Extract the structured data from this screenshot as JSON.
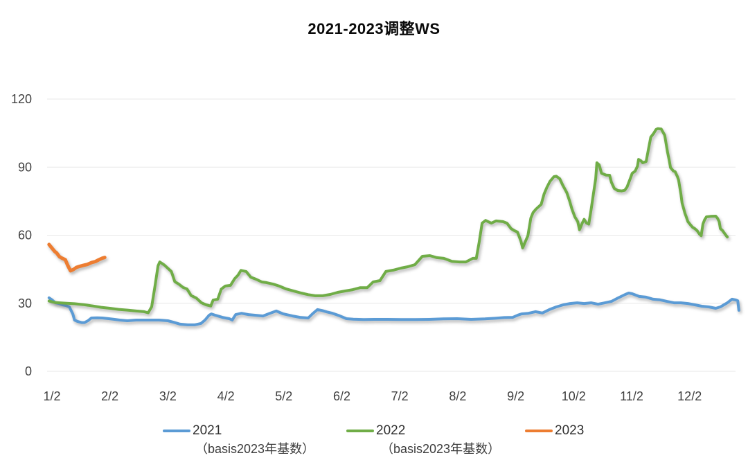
{
  "title": "2021-2023调整WS",
  "legend": {
    "items": [
      {
        "label": "2021",
        "color": "#5B9BD5"
      },
      {
        "label": "2022",
        "color": "#70AD47"
      },
      {
        "label": "2023",
        "color": "#ED7D31"
      }
    ]
  },
  "captions": [
    "（basis2023年基数）",
    "（basis2023年基数）"
  ],
  "chart_data": {
    "type": "line",
    "title": "2021-2023调整WS",
    "xlabel": "",
    "ylabel": "",
    "x_unit_note": "x is month index: 1.0 = 1/2 (Jan 2), 2.0 = 2/2, ... fractional = day within month",
    "x_axis": {
      "tick_labels": [
        "1/2",
        "2/2",
        "3/2",
        "4/2",
        "5/2",
        "6/2",
        "7/2",
        "8/2",
        "9/2",
        "10/2",
        "11/2",
        "12/2"
      ]
    },
    "y_axis": {
      "ticks": [
        0,
        30,
        60,
        90,
        120
      ],
      "range": [
        0,
        120
      ]
    },
    "grid": "horizontal",
    "legend_position": "bottom",
    "series": [
      {
        "name": "2021",
        "color": "#5B9BD5",
        "stroke_width": 4,
        "x": [
          0.95,
          1.0,
          1.06,
          1.12,
          1.18,
          1.24,
          1.3,
          1.36,
          1.39,
          1.44,
          1.51,
          1.56,
          1.62,
          1.68,
          1.78,
          1.87,
          1.98,
          2.08,
          2.17,
          2.3,
          2.45,
          2.6,
          2.72,
          2.85,
          3.0,
          3.09,
          3.21,
          3.34,
          3.46,
          3.57,
          3.64,
          3.71,
          3.75,
          3.82,
          3.94,
          4.06,
          4.11,
          4.17,
          4.27,
          4.39,
          4.52,
          4.64,
          4.76,
          4.87,
          4.99,
          5.15,
          5.28,
          5.42,
          5.5,
          5.58,
          5.66,
          5.74,
          5.84,
          5.96,
          6.08,
          6.2,
          6.38,
          6.56,
          6.79,
          7.03,
          7.27,
          7.51,
          7.75,
          7.99,
          8.23,
          8.47,
          8.65,
          8.8,
          8.95,
          9.04,
          9.1,
          9.22,
          9.34,
          9.46,
          9.58,
          9.7,
          9.82,
          9.94,
          10.06,
          10.18,
          10.3,
          10.42,
          10.54,
          10.65,
          10.77,
          10.89,
          10.95,
          11.01,
          11.13,
          11.25,
          11.37,
          11.49,
          11.61,
          11.73,
          11.85,
          11.97,
          12.09,
          12.21,
          12.33,
          12.45,
          12.53,
          12.65,
          12.73,
          12.79,
          12.83,
          12.85
        ],
        "y": [
          32.4,
          31.5,
          30.2,
          29.9,
          29.3,
          29.0,
          28.4,
          25.3,
          22.6,
          22.0,
          21.5,
          21.5,
          22.3,
          23.5,
          23.6,
          23.5,
          23.2,
          22.9,
          22.6,
          22.3,
          22.6,
          22.6,
          22.6,
          22.6,
          22.3,
          21.7,
          20.8,
          20.5,
          20.5,
          21.1,
          22.6,
          24.7,
          25.3,
          24.7,
          23.8,
          23.2,
          22.6,
          25.0,
          25.6,
          25.0,
          24.7,
          24.4,
          25.6,
          26.6,
          25.3,
          24.4,
          23.8,
          23.5,
          25.5,
          27.2,
          26.8,
          26.2,
          25.6,
          24.5,
          23.2,
          23.0,
          22.8,
          22.9,
          22.9,
          22.8,
          22.8,
          22.9,
          23.1,
          23.2,
          22.9,
          23.1,
          23.4,
          23.7,
          23.8,
          24.8,
          25.3,
          25.6,
          26.3,
          25.7,
          27.2,
          28.4,
          29.3,
          29.9,
          30.2,
          29.9,
          30.2,
          29.6,
          30.2,
          30.8,
          32.4,
          33.9,
          34.5,
          34.2,
          33.0,
          32.7,
          31.8,
          31.5,
          30.8,
          30.2,
          30.2,
          29.9,
          29.3,
          28.7,
          28.4,
          27.8,
          28.4,
          30.2,
          31.8,
          31.5,
          31.1,
          26.9
        ]
      },
      {
        "name": "2022",
        "color": "#70AD47",
        "stroke_width": 4,
        "x": [
          0.95,
          1.06,
          1.25,
          1.39,
          1.54,
          1.71,
          1.85,
          2.0,
          2.15,
          2.3,
          2.45,
          2.59,
          2.66,
          2.72,
          2.78,
          2.83,
          2.86,
          2.94,
          3.01,
          3.06,
          3.12,
          3.19,
          3.26,
          3.33,
          3.4,
          3.49,
          3.58,
          3.66,
          3.74,
          3.78,
          3.86,
          3.92,
          3.99,
          4.08,
          4.15,
          4.21,
          4.26,
          4.35,
          4.43,
          4.52,
          4.62,
          4.7,
          4.82,
          4.92,
          5.04,
          5.17,
          5.3,
          5.42,
          5.54,
          5.67,
          5.8,
          5.93,
          6.05,
          6.19,
          6.32,
          6.44,
          6.54,
          6.66,
          6.76,
          6.89,
          7.02,
          7.14,
          7.26,
          7.39,
          7.52,
          7.64,
          7.76,
          7.9,
          8.03,
          8.14,
          8.26,
          8.32,
          8.37,
          8.42,
          8.48,
          8.58,
          8.66,
          8.78,
          8.85,
          8.92,
          8.98,
          9.03,
          9.09,
          9.12,
          9.21,
          9.26,
          9.3,
          9.35,
          9.44,
          9.49,
          9.54,
          9.59,
          9.66,
          9.7,
          9.76,
          9.81,
          9.88,
          9.93,
          9.97,
          10.02,
          10.07,
          10.1,
          10.15,
          10.18,
          10.22,
          10.26,
          10.3,
          10.34,
          10.38,
          10.4,
          10.44,
          10.48,
          10.56,
          10.62,
          10.65,
          10.7,
          10.76,
          10.83,
          10.88,
          10.92,
          10.98,
          11.01,
          11.06,
          11.1,
          11.12,
          11.16,
          11.19,
          11.25,
          11.33,
          11.38,
          11.42,
          11.45,
          11.51,
          11.57,
          11.6,
          11.62,
          11.65,
          11.67,
          11.72,
          11.75,
          11.79,
          11.81,
          11.85,
          11.87,
          11.9,
          11.92,
          11.94,
          11.97,
          12.02,
          12.05,
          12.09,
          12.13,
          12.17,
          12.2,
          12.23,
          12.26,
          12.29,
          12.36,
          12.45,
          12.48,
          12.51,
          12.53,
          12.57,
          12.61,
          12.65
        ],
        "y": [
          31.0,
          30.3,
          30.0,
          29.8,
          29.4,
          28.8,
          28.2,
          27.8,
          27.3,
          27.0,
          26.6,
          26.3,
          25.8,
          28.5,
          38.0,
          46.5,
          48.2,
          46.8,
          45.2,
          44.0,
          39.5,
          38.4,
          37.0,
          36.3,
          33.4,
          32.3,
          30.2,
          29.3,
          28.8,
          31.4,
          31.8,
          36.2,
          37.6,
          37.9,
          40.8,
          42.4,
          44.5,
          44.0,
          41.5,
          40.6,
          39.4,
          39.1,
          38.4,
          37.6,
          36.3,
          35.4,
          34.5,
          33.8,
          33.3,
          33.3,
          33.9,
          34.8,
          35.4,
          36.0,
          36.9,
          36.9,
          39.4,
          40.0,
          44.0,
          44.6,
          45.5,
          46.1,
          47.0,
          50.7,
          51.0,
          50.1,
          49.8,
          48.5,
          48.2,
          48.2,
          49.8,
          49.8,
          57.0,
          65.3,
          66.5,
          65.3,
          66.3,
          66.0,
          65.3,
          62.9,
          62.0,
          61.4,
          57.4,
          54.4,
          59.8,
          67.5,
          70.0,
          71.5,
          73.6,
          78.2,
          81.2,
          83.7,
          85.8,
          86.0,
          84.9,
          82.1,
          78.8,
          75.1,
          71.5,
          68.1,
          66.0,
          62.4,
          65.5,
          67.0,
          65.4,
          64.9,
          71.1,
          78.2,
          84.9,
          91.9,
          91.0,
          87.3,
          86.5,
          86.4,
          83.4,
          80.6,
          79.7,
          79.5,
          79.8,
          81.2,
          85.2,
          87.3,
          88.2,
          90.4,
          93.4,
          92.8,
          91.9,
          92.5,
          103.2,
          104.9,
          106.6,
          107.0,
          106.8,
          104.1,
          99.5,
          96.5,
          92.8,
          89.8,
          88.3,
          88.0,
          85.8,
          84.3,
          78.2,
          74.2,
          71.5,
          69.6,
          68.2,
          66.0,
          64.4,
          63.5,
          62.9,
          62.0,
          60.5,
          59.8,
          65.0,
          66.9,
          68.1,
          68.3,
          68.4,
          67.5,
          66.0,
          62.9,
          62.0,
          60.5,
          59.2
        ]
      },
      {
        "name": "2023",
        "color": "#ED7D31",
        "stroke_width": 5,
        "x": [
          0.95,
          1.01,
          1.05,
          1.08,
          1.13,
          1.18,
          1.23,
          1.27,
          1.32,
          1.37,
          1.42,
          1.48,
          1.54,
          1.61,
          1.68,
          1.75,
          1.81,
          1.87,
          1.91
        ],
        "y": [
          55.9,
          54.0,
          52.8,
          52.2,
          50.5,
          49.8,
          49.2,
          46.8,
          44.3,
          44.9,
          45.8,
          46.3,
          46.7,
          47.1,
          47.9,
          48.4,
          49.2,
          49.9,
          50.2
        ]
      }
    ]
  }
}
